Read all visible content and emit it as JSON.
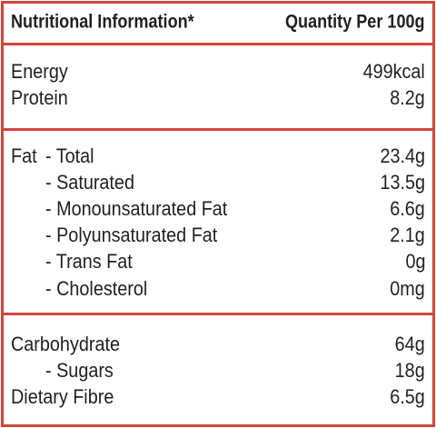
{
  "header": {
    "title": "Nutritional Information*",
    "quantity": "Quantity Per 100g"
  },
  "sections": [
    {
      "rows": [
        {
          "label": "Energy",
          "value": "499kcal"
        },
        {
          "label": "Protein",
          "value": "8.2g"
        }
      ]
    },
    {
      "rows": [
        {
          "prefix": "Fat",
          "label": "- Total",
          "value": "23.4g"
        },
        {
          "label": "- Saturated",
          "value": "13.5g"
        },
        {
          "label": "- Monounsaturated Fat",
          "value": "6.6g"
        },
        {
          "label": "- Polyunsaturated Fat",
          "value": "2.1g"
        },
        {
          "label": "- Trans Fat",
          "value": "0g"
        },
        {
          "label": "- Cholesterol",
          "value": "0mg"
        }
      ]
    },
    {
      "rows": [
        {
          "label": "Carbohydrate",
          "value": "64g"
        },
        {
          "label": "- Sugars",
          "value": "18g"
        },
        {
          "label": "Dietary Fibre",
          "value": "6.5g"
        }
      ]
    }
  ]
}
